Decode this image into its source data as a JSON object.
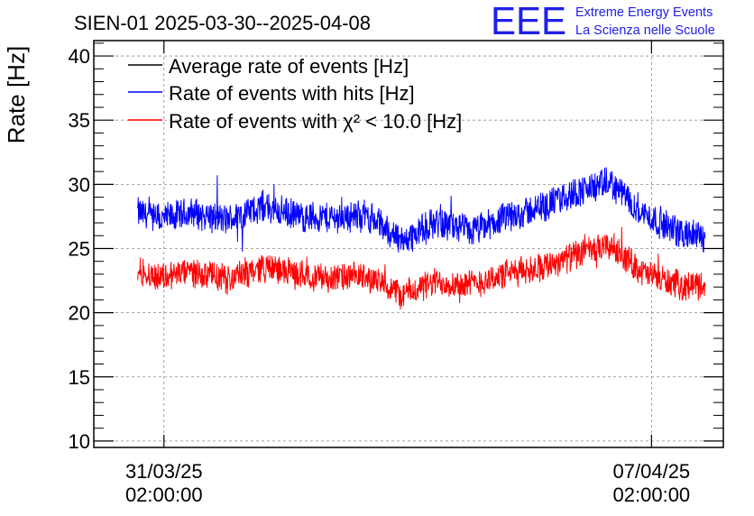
{
  "chart_data": {
    "type": "line",
    "title": "SIEN-01 2025-03-30--2025-04-08",
    "ylabel": "Rate [Hz]",
    "ylim": [
      9.5,
      41.2
    ],
    "y_ticks": [
      "10",
      "15",
      "20",
      "25",
      "30",
      "35",
      "40"
    ],
    "x_ticks": [
      {
        "date": "31/03/25",
        "time": "02:00:00"
      },
      {
        "date": "07/04/25",
        "time": "02:00:00"
      }
    ],
    "x_range": [
      "2025-03-30T01:50:00",
      "2025-04-08T02:45:00"
    ],
    "data_span": [
      "2025-03-30T17:00:00",
      "2025-04-07T20:30:00"
    ],
    "grid": true,
    "legend_position": "top-left",
    "series": [
      {
        "name": "Average rate of events [Hz]",
        "color": "#000000",
        "values": []
      },
      {
        "name": "Rate of events with hits [Hz]",
        "color": "#0000ff",
        "x": [
          "2025-03-30T17:00",
          "2025-03-31T00:00",
          "2025-03-31T12:00",
          "2025-04-01T00:00",
          "2025-04-01T12:00",
          "2025-04-02T00:00",
          "2025-04-02T12:00",
          "2025-04-03T00:00",
          "2025-04-03T12:00",
          "2025-04-04T00:00",
          "2025-04-04T12:00",
          "2025-04-05T00:00",
          "2025-04-05T12:00",
          "2025-04-06T00:00",
          "2025-04-06T12:00",
          "2025-04-07T00:00",
          "2025-04-07T12:00",
          "2025-04-07T20:30"
        ],
        "values": [
          27.8,
          27.2,
          27.8,
          27.2,
          28.3,
          27.5,
          27.4,
          27.6,
          25.6,
          27.1,
          26.3,
          27.4,
          28.2,
          29.4,
          30.1,
          27.6,
          26.2,
          25.9
        ],
        "noise_amplitude": 1.4
      },
      {
        "name": "Rate of events with χ² < 10.0 [Hz]",
        "color": "#ff0000",
        "x": [
          "2025-03-30T17:00",
          "2025-03-31T00:00",
          "2025-03-31T12:00",
          "2025-04-01T00:00",
          "2025-04-01T12:00",
          "2025-04-02T00:00",
          "2025-04-02T12:00",
          "2025-04-03T00:00",
          "2025-04-03T12:00",
          "2025-04-04T00:00",
          "2025-04-04T12:00",
          "2025-04-05T00:00",
          "2025-04-05T12:00",
          "2025-04-06T00:00",
          "2025-04-06T12:00",
          "2025-04-07T00:00",
          "2025-04-07T12:00",
          "2025-04-07T20:30"
        ],
        "values": [
          23.3,
          22.8,
          23.2,
          22.6,
          23.6,
          23.0,
          22.7,
          22.8,
          21.4,
          22.4,
          22.2,
          23.0,
          23.6,
          24.5,
          25.2,
          23.0,
          22.1,
          22.2
        ],
        "noise_amplitude": 1.3
      }
    ]
  },
  "logo": {
    "mark": "EEE",
    "line1": "Extreme Energy Events",
    "line2": "La Scienza nelle Scuole"
  }
}
